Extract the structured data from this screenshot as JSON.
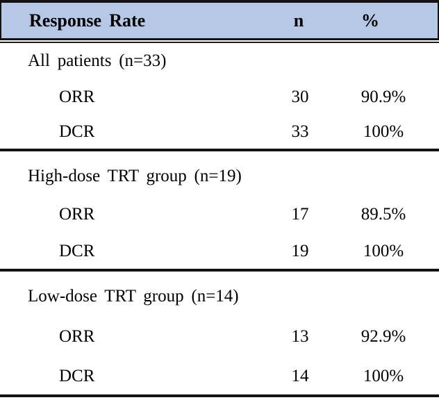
{
  "table": {
    "title": "Response Rate",
    "header": {
      "label": "Response Rate",
      "col_n": "n",
      "col_pct": "%"
    },
    "sections": [
      {
        "group_label": "All patients (n=33)",
        "rows": [
          {
            "label": "ORR",
            "n": "30",
            "pct": "90.9%"
          },
          {
            "label": "DCR",
            "n": "33",
            "pct": "100%"
          }
        ]
      },
      {
        "group_label": "High-dose TRT group (n=19)",
        "rows": [
          {
            "label": "ORR",
            "n": "17",
            "pct": "89.5%"
          },
          {
            "label": "DCR",
            "n": "19",
            "pct": "100%"
          }
        ]
      },
      {
        "group_label": "Low-dose TRT group (n=14)",
        "rows": [
          {
            "label": "ORR",
            "n": "13",
            "pct": "92.9%"
          },
          {
            "label": "DCR",
            "n": "14",
            "pct": "100%"
          }
        ]
      }
    ],
    "colors": {
      "header_bg": "#b6c8e6",
      "border": "#121212",
      "text": "#000000"
    }
  }
}
